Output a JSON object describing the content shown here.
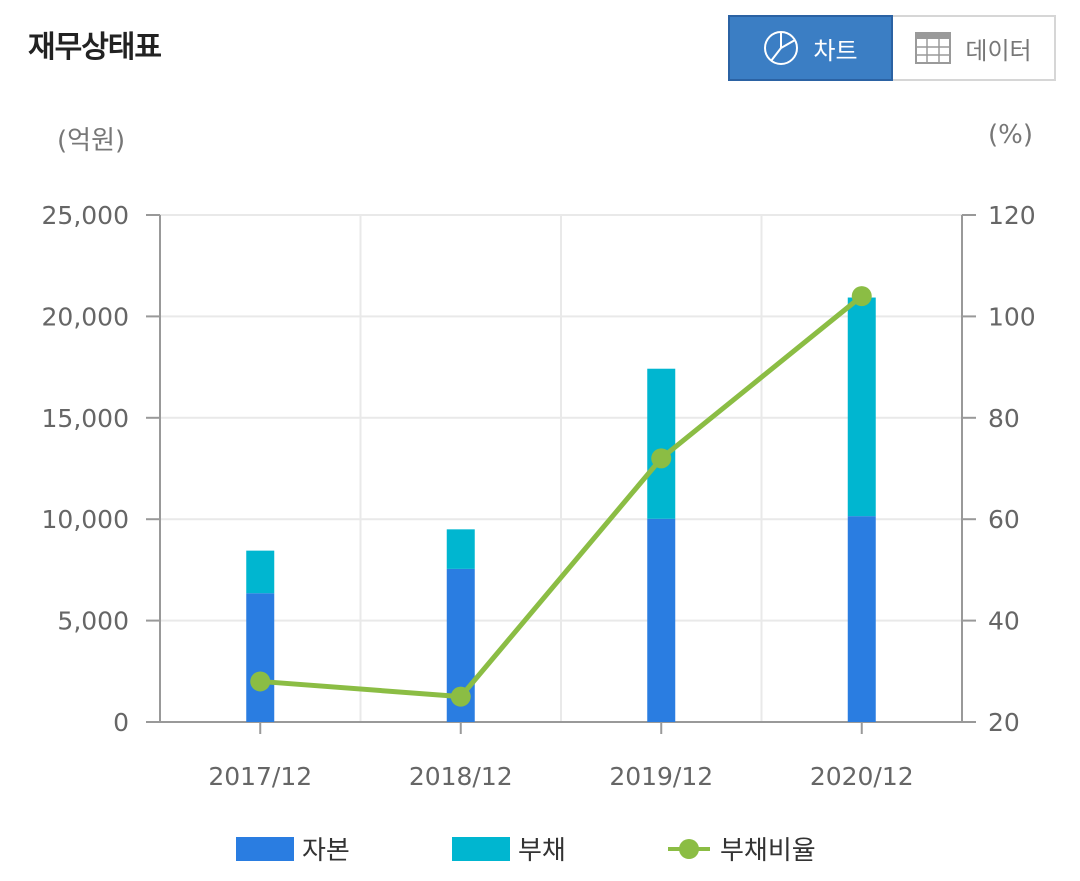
{
  "title": "재무상태표",
  "toggle": {
    "chart_label": "차트",
    "data_label": "데이터",
    "active": "chart"
  },
  "colors": {
    "capital": "#2a7de1",
    "liability": "#00b6d0",
    "ratio": "#8bbd44",
    "active_button": "#3b7ec4"
  },
  "icons": {
    "chart": "pie-chart-icon",
    "data": "table-grid-icon"
  },
  "chart_data": {
    "type": "bar",
    "stacked": true,
    "categories": [
      "2017/12",
      "2018/12",
      "2019/12",
      "2020/12"
    ],
    "series": [
      {
        "name": "자본",
        "kind": "bar",
        "axis": "left",
        "values": [
          6350,
          7550,
          10020,
          10150
        ]
      },
      {
        "name": "부채",
        "kind": "bar",
        "axis": "left",
        "values": [
          2100,
          1950,
          7400,
          10780
        ]
      },
      {
        "name": "부채비율",
        "kind": "line",
        "axis": "right",
        "values": [
          28,
          25,
          72,
          104
        ]
      }
    ],
    "y_left": {
      "unit": "(억원)",
      "range": [
        0,
        25000
      ],
      "ticks": [
        "0",
        "5,000",
        "10,000",
        "15,000",
        "20,000",
        "25,000"
      ]
    },
    "y_right": {
      "unit": "(%)",
      "range": [
        20,
        120
      ],
      "ticks": [
        "20",
        "40",
        "60",
        "80",
        "100",
        "120"
      ]
    },
    "grid": true,
    "legend_position": "bottom"
  }
}
